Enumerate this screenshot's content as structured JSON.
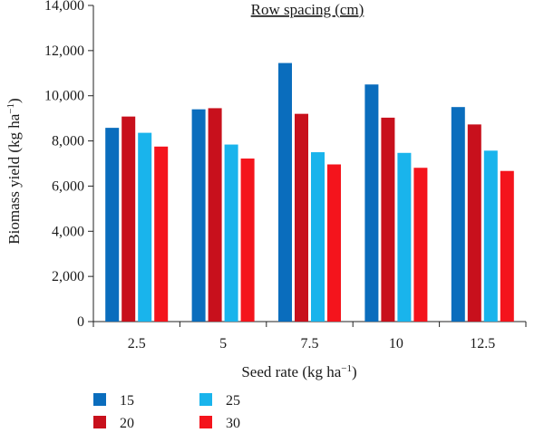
{
  "chart_data": {
    "type": "bar",
    "title": "Row spacing (cm)",
    "xlabel": "Seed rate (kg ha",
    "xlabel_sup": "−1",
    "xlabel_end": ")",
    "ylabel": "Biomass yield (kg ha",
    "ylabel_sup": "−1",
    "ylabel_end": ")",
    "categories": [
      "2.5",
      "5",
      "7.5",
      "10",
      "12.5"
    ],
    "ylim": [
      0,
      14000
    ],
    "yticks": [
      0,
      2000,
      4000,
      6000,
      8000,
      10000,
      12000,
      14000
    ],
    "ytick_labels": [
      "0",
      "2,000",
      "4,000",
      "6,000",
      "8,000",
      "10,000",
      "12,000",
      "14,000"
    ],
    "grid": false,
    "legend_position": "bottom-left",
    "series": [
      {
        "name": "15",
        "color": "#0a6dbd",
        "values": [
          8580,
          9400,
          11450,
          10500,
          9500
        ]
      },
      {
        "name": "20",
        "color": "#c8101c",
        "values": [
          9080,
          9450,
          9200,
          9030,
          8730
        ]
      },
      {
        "name": "25",
        "color": "#19b4ec",
        "values": [
          8360,
          7840,
          7500,
          7470,
          7570
        ]
      },
      {
        "name": "30",
        "color": "#f4141c",
        "values": [
          7750,
          7220,
          6960,
          6810,
          6670
        ]
      }
    ]
  }
}
